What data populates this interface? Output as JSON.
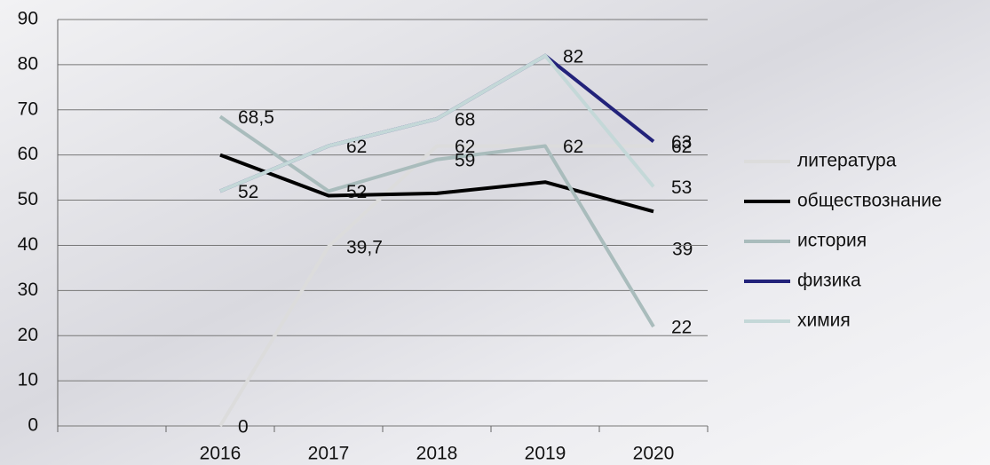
{
  "chart_data": {
    "type": "line",
    "categories": [
      null,
      "2016",
      "2017",
      "2018",
      "2019",
      "2020"
    ],
    "ylim": [
      0,
      90
    ],
    "yticks": [
      0,
      10,
      20,
      30,
      40,
      50,
      60,
      70,
      80,
      90
    ],
    "grid": true,
    "legend": "right",
    "series": [
      {
        "name": "литература",
        "color": "#dcdcdc",
        "values": [
          null,
          0,
          39.7,
          62,
          62,
          62
        ],
        "value_labels": [
          null,
          "0",
          "39,7",
          "62",
          "62",
          "62"
        ]
      },
      {
        "name": "обществознание",
        "color": "#000000",
        "values": [
          null,
          60,
          51,
          51.5,
          54,
          47.5
        ],
        "value_labels": [
          null,
          null,
          null,
          null,
          null,
          null
        ]
      },
      {
        "name": "история",
        "color": "#a9bcbc",
        "values": [
          null,
          68.5,
          52,
          59,
          62,
          22
        ],
        "value_labels": [
          null,
          "68,5",
          "52",
          "59",
          null,
          "22"
        ]
      },
      {
        "name": "физика",
        "color": "#22227a",
        "values": [
          null,
          52,
          62,
          68,
          82,
          63
        ],
        "value_labels": [
          null,
          "52",
          "62",
          "68",
          "82",
          "63"
        ]
      },
      {
        "name": "химия",
        "color": "#c4d8d8",
        "values": [
          null,
          52,
          62,
          68,
          82,
          53
        ],
        "value_labels": [
          null,
          null,
          null,
          null,
          null,
          "53"
        ]
      }
    ],
    "annotations": [
      "39"
    ]
  }
}
